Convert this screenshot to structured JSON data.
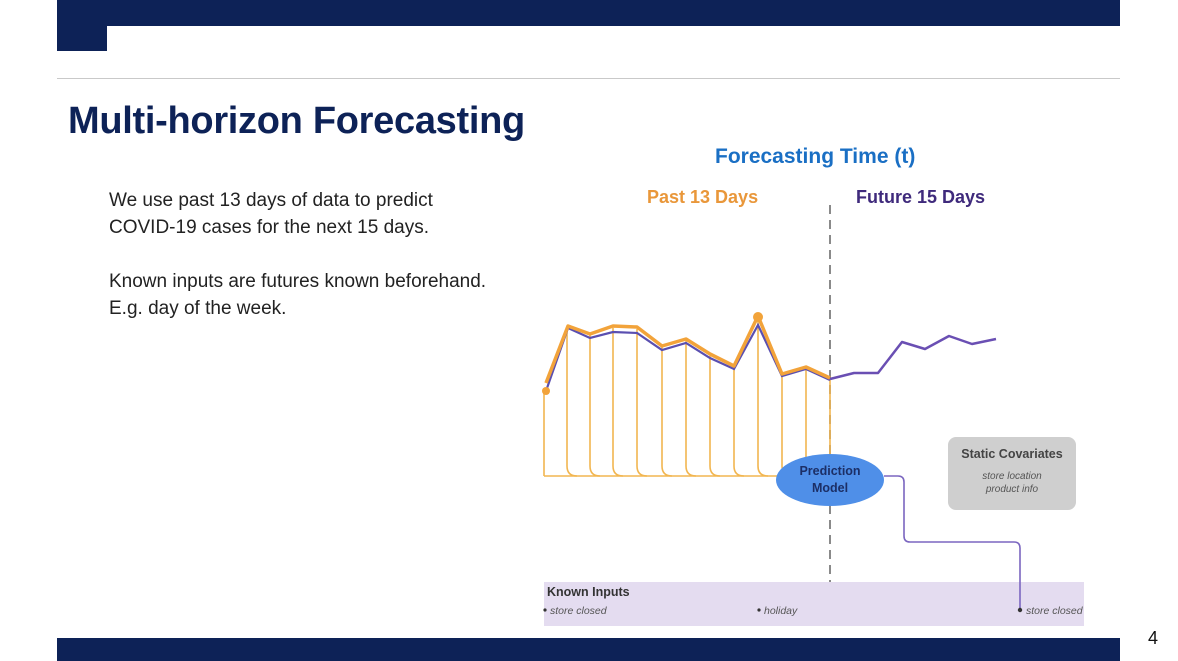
{
  "slide": {
    "title": "Multi-horizon Forecasting",
    "page_number": "4",
    "paragraph_1": "We use past 13 days of data to predict COVID-19 cases for the next 15 days.",
    "paragraph_2": "Known inputs are futures known beforehand. E.g. day of the week."
  },
  "diagram": {
    "heading": "Forecasting Time (t)",
    "past_label": "Past 13 Days",
    "future_label": "Future 15 Days",
    "model_line1": "Prediction",
    "model_line2": "Model",
    "static_title": "Static Covariates",
    "static_item1": "store location",
    "static_item2": "product info",
    "known_title": "Known Inputs",
    "known_item1": "store closed",
    "known_item2": "holiday",
    "known_item3": "store closed"
  },
  "colors": {
    "navy": "#0d2257",
    "blue_heading": "#1a6fc4",
    "past_orange": "#f2a33a",
    "future_purple": "#6a4fb3",
    "model_blue": "#4f8fe8",
    "known_band": "#e4dcf0",
    "static_box": "#cfcfcf"
  }
}
